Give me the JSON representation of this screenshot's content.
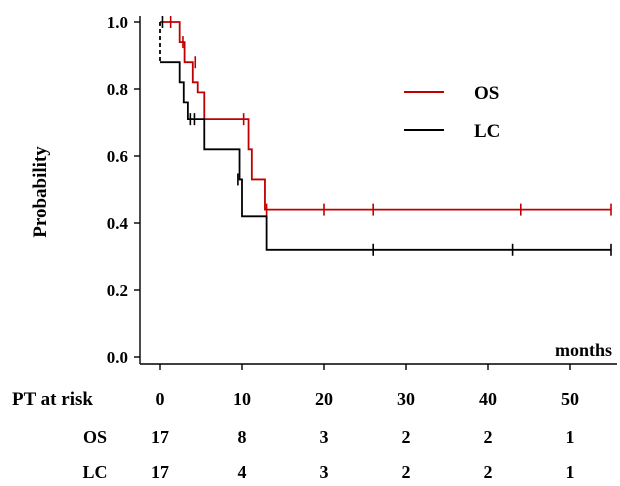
{
  "chart_data": {
    "type": "line",
    "subtype": "kaplan-meier",
    "title": "",
    "xlabel": "months",
    "ylabel": "Probability",
    "xlim": [
      -2,
      55
    ],
    "ylim": [
      0,
      1.0
    ],
    "x_ticks": [
      0,
      10,
      20,
      30,
      40,
      50
    ],
    "y_ticks": [
      0.0,
      0.2,
      0.4,
      0.6,
      0.8,
      1.0
    ],
    "y_tick_labels": [
      "0.0",
      "0.2",
      "0.4",
      "0.6",
      "0.8",
      "1.0"
    ],
    "grid": false,
    "legend_position": "top-right",
    "series": [
      {
        "name": "OS",
        "color": "#c00000",
        "steps": [
          [
            0,
            1.0
          ],
          [
            2.4,
            0.94
          ],
          [
            3.0,
            0.88
          ],
          [
            4.0,
            0.82
          ],
          [
            4.6,
            0.79
          ],
          [
            5.4,
            0.71
          ],
          [
            10.8,
            0.62
          ],
          [
            11.2,
            0.53
          ],
          [
            12.8,
            0.44
          ],
          [
            55,
            0.44
          ]
        ],
        "censored": [
          [
            1.3,
            1.0
          ],
          [
            2.8,
            0.94
          ],
          [
            4.3,
            0.88
          ],
          [
            10.2,
            0.71
          ],
          [
            13.0,
            0.44
          ],
          [
            20,
            0.44
          ],
          [
            26,
            0.44
          ],
          [
            44,
            0.44
          ],
          [
            55,
            0.44
          ]
        ]
      },
      {
        "name": "LC",
        "color": "#000000",
        "steps": [
          [
            0,
            0.88
          ],
          [
            1.9,
            0.88
          ],
          [
            2.4,
            0.82
          ],
          [
            2.9,
            0.76
          ],
          [
            3.4,
            0.71
          ],
          [
            5.4,
            0.62
          ],
          [
            9.7,
            0.53
          ],
          [
            10.0,
            0.42
          ],
          [
            13.0,
            0.32
          ],
          [
            55,
            0.32
          ]
        ],
        "dashed_start": [
          [
            0,
            1.0
          ],
          [
            0,
            0.88
          ]
        ],
        "censored": [
          [
            0.3,
            1.0
          ],
          [
            3.7,
            0.71
          ],
          [
            4.2,
            0.71
          ],
          [
            9.5,
            0.53
          ],
          [
            26,
            0.32
          ],
          [
            43,
            0.32
          ],
          [
            55,
            0.32
          ]
        ]
      }
    ],
    "risk_table": {
      "header_label": "PT at risk",
      "times": [
        "0",
        "10",
        "20",
        "30",
        "40",
        "50"
      ],
      "rows": [
        {
          "label": "OS",
          "values": [
            "17",
            "8",
            "3",
            "2",
            "2",
            "1"
          ]
        },
        {
          "label": "LC",
          "values": [
            "17",
            "4",
            "3",
            "2",
            "2",
            "1"
          ]
        }
      ]
    }
  }
}
